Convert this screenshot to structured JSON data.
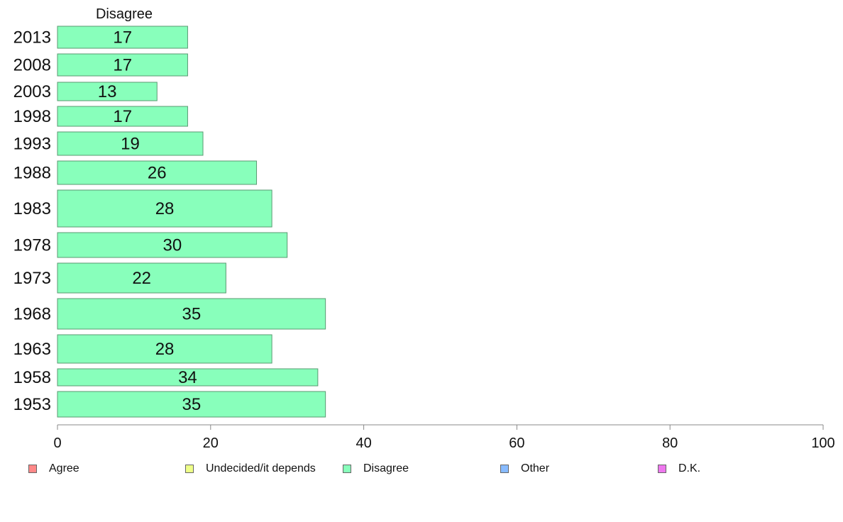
{
  "chart_data": {
    "type": "bar",
    "orientation": "horizontal",
    "series_label": "Disagree",
    "categories": [
      "2013",
      "2008",
      "2003",
      "1998",
      "1993",
      "1988",
      "1983",
      "1978",
      "1973",
      "1968",
      "1963",
      "1958",
      "1953"
    ],
    "values": [
      17,
      17,
      13,
      17,
      19,
      26,
      28,
      30,
      22,
      35,
      28,
      34,
      35
    ],
    "data_labels": [
      "17",
      "17",
      "13",
      "17",
      "19",
      "26",
      "28",
      "30",
      "22",
      "35",
      "28",
      "34",
      "35"
    ],
    "xlim": [
      0,
      100
    ],
    "x_ticks": [
      "0",
      "20",
      "40",
      "60",
      "80",
      "100"
    ],
    "bar_color": "#88FFBB",
    "bar_stroke": "#5a9a72",
    "grid": false,
    "legend_position": "bottom",
    "legend": [
      {
        "label": "Agree",
        "color": "#FF8888"
      },
      {
        "label": "Undecided/it depends",
        "color": "#EEFF88"
      },
      {
        "label": "Disagree",
        "color": "#88FFBB"
      },
      {
        "label": "Other",
        "color": "#88BBFF"
      },
      {
        "label": "D.K.",
        "color": "#EE77EE"
      }
    ]
  }
}
